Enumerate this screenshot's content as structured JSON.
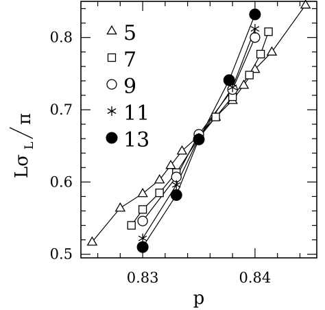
{
  "chart_data": {
    "type": "line",
    "xlabel": "p",
    "ylabel": "Lσ_L/π",
    "ylabel_parts": {
      "base": "Lσ",
      "subscript": "L",
      "denominator": "π"
    },
    "xlim": [
      0.8245,
      0.8455
    ],
    "ylim": [
      0.495,
      0.85
    ],
    "x_ticks": [
      0.83,
      0.84
    ],
    "x_tick_labels": [
      "0.83",
      "0.84"
    ],
    "x_minor_step": 0.002,
    "y_ticks": [
      0.5,
      0.6,
      0.7,
      0.8
    ],
    "y_tick_labels": [
      "0.5",
      "0.6",
      "0.7",
      "0.8"
    ],
    "y_minor_step": 0.02,
    "grid": false,
    "legend_position": "top-left",
    "series": [
      {
        "name": "5",
        "marker": "open-triangle",
        "x": [
          0.8255,
          0.828,
          0.83,
          0.8315,
          0.8325,
          0.8335,
          0.835,
          0.8365,
          0.838,
          0.839,
          0.84,
          0.8415,
          0.8445
        ],
        "y": [
          0.517,
          0.564,
          0.584,
          0.603,
          0.623,
          0.643,
          0.664,
          0.69,
          0.713,
          0.734,
          0.756,
          0.78,
          0.845
        ]
      },
      {
        "name": "7",
        "marker": "open-square",
        "x": [
          0.829,
          0.83,
          0.8315,
          0.833,
          0.835,
          0.8365,
          0.838,
          0.8395,
          0.8405,
          0.8412
        ],
        "y": [
          0.54,
          0.562,
          0.585,
          0.613,
          0.661,
          0.69,
          0.718,
          0.748,
          0.777,
          0.808
        ]
      },
      {
        "name": "9",
        "marker": "open-circle",
        "x": [
          0.83,
          0.833,
          0.835,
          0.838,
          0.84
        ],
        "y": [
          0.546,
          0.607,
          0.666,
          0.728,
          0.8
        ]
      },
      {
        "name": "11",
        "marker": "asterisk",
        "x": [
          0.83,
          0.833,
          0.835,
          0.838,
          0.84
        ],
        "y": [
          0.522,
          0.596,
          0.661,
          0.731,
          0.812
        ]
      },
      {
        "name": "13",
        "marker": "filled-circle",
        "x": [
          0.83,
          0.833,
          0.835,
          0.8377,
          0.84
        ],
        "y": [
          0.51,
          0.582,
          0.659,
          0.741,
          0.832
        ]
      }
    ]
  }
}
